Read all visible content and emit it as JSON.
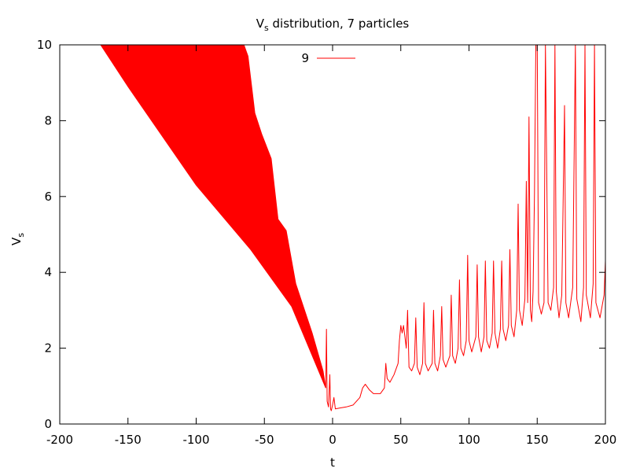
{
  "chart_data": {
    "type": "line",
    "title": "V",
    "title_sub": "s",
    "title_rest": " distribution, 7 particles",
    "xlabel": "t",
    "ylabel": "V",
    "ylabel_sub": "s",
    "xlim": [
      -200,
      200
    ],
    "ylim": [
      0,
      10
    ],
    "x_ticks": [
      "-200",
      "-150",
      "-100",
      "-50",
      "0",
      "50",
      "100",
      "150",
      "200"
    ],
    "x_tick_values": [
      -200,
      -150,
      -100,
      -50,
      0,
      50,
      100,
      150,
      200
    ],
    "y_ticks": [
      "0",
      "2",
      "4",
      "6",
      "8",
      "10"
    ],
    "y_tick_values": [
      0,
      2,
      4,
      6,
      8,
      10
    ],
    "grid": false,
    "legend_position": "top-center",
    "series": [
      {
        "name": "9",
        "color": "#ff0000",
        "band_lower": [
          [
            -170,
            10
          ],
          [
            -150,
            8.9
          ],
          [
            -100,
            6.3
          ],
          [
            -60,
            4.6
          ],
          [
            -30,
            3.1
          ],
          [
            -5,
            0.95
          ]
        ],
        "band_upper": [
          [
            -170,
            10
          ],
          [
            -65,
            10
          ],
          [
            -62,
            9.7
          ],
          [
            -57,
            8.2
          ],
          [
            -52,
            7.65
          ],
          [
            -45,
            7.0
          ],
          [
            -40,
            5.4
          ],
          [
            -34,
            5.1
          ],
          [
            -27,
            3.7
          ],
          [
            -15,
            2.4
          ],
          [
            -7,
            1.4
          ],
          [
            -5,
            0.95
          ]
        ],
        "points": [
          [
            -5,
            0.95
          ],
          [
            -4.5,
            2.5
          ],
          [
            -4,
            0.6
          ],
          [
            -3,
            0.45
          ],
          [
            -2,
            1.3
          ],
          [
            -1.5,
            0.4
          ],
          [
            -1,
            0.35
          ],
          [
            0,
            0.5
          ],
          [
            1,
            0.7
          ],
          [
            2,
            0.4
          ],
          [
            5,
            0.42
          ],
          [
            10,
            0.45
          ],
          [
            15,
            0.5
          ],
          [
            20,
            0.7
          ],
          [
            22,
            0.95
          ],
          [
            24,
            1.05
          ],
          [
            27,
            0.9
          ],
          [
            30,
            0.8
          ],
          [
            35,
            0.8
          ],
          [
            38,
            0.95
          ],
          [
            39,
            1.6
          ],
          [
            40,
            1.2
          ],
          [
            42,
            1.1
          ],
          [
            45,
            1.3
          ],
          [
            48,
            1.6
          ],
          [
            49,
            2.2
          ],
          [
            50,
            2.6
          ],
          [
            51,
            2.4
          ],
          [
            52,
            2.6
          ],
          [
            53,
            2.3
          ],
          [
            54,
            2.0
          ],
          [
            55,
            3.0
          ],
          [
            56,
            1.5
          ],
          [
            58,
            1.4
          ],
          [
            60,
            1.6
          ],
          [
            61,
            2.8
          ],
          [
            62,
            1.5
          ],
          [
            64,
            1.3
          ],
          [
            66,
            1.6
          ],
          [
            67,
            3.2
          ],
          [
            68,
            1.6
          ],
          [
            70,
            1.4
          ],
          [
            73,
            1.6
          ],
          [
            74,
            3.0
          ],
          [
            75,
            1.6
          ],
          [
            77,
            1.4
          ],
          [
            79,
            1.8
          ],
          [
            80,
            3.1
          ],
          [
            81,
            1.7
          ],
          [
            83,
            1.5
          ],
          [
            86,
            1.8
          ],
          [
            87,
            3.4
          ],
          [
            88,
            1.8
          ],
          [
            90,
            1.6
          ],
          [
            92,
            2.0
          ],
          [
            93,
            3.8
          ],
          [
            94,
            2.0
          ],
          [
            96,
            1.8
          ],
          [
            98,
            2.2
          ],
          [
            99,
            4.45
          ],
          [
            100,
            2.2
          ],
          [
            102,
            1.9
          ],
          [
            105,
            2.3
          ],
          [
            106,
            4.2
          ],
          [
            107,
            2.3
          ],
          [
            109,
            1.9
          ],
          [
            111,
            2.3
          ],
          [
            112,
            4.3
          ],
          [
            113,
            2.2
          ],
          [
            115,
            2.0
          ],
          [
            117,
            2.4
          ],
          [
            118,
            4.3
          ],
          [
            119,
            2.4
          ],
          [
            121,
            2.0
          ],
          [
            123,
            2.5
          ],
          [
            124,
            4.3
          ],
          [
            125,
            2.5
          ],
          [
            127,
            2.2
          ],
          [
            129,
            2.6
          ],
          [
            130,
            4.6
          ],
          [
            131,
            2.6
          ],
          [
            133,
            2.3
          ],
          [
            135,
            3.0
          ],
          [
            136,
            5.8
          ],
          [
            137,
            3.0
          ],
          [
            139,
            2.6
          ],
          [
            141,
            3.3
          ],
          [
            142,
            6.4
          ],
          [
            143,
            3.2
          ],
          [
            144,
            8.1
          ],
          [
            145,
            3.0
          ],
          [
            146,
            2.7
          ],
          [
            147,
            3.5
          ],
          [
            148,
            6.1
          ],
          [
            149,
            10
          ],
          [
            150,
            10
          ],
          [
            151,
            3.2
          ],
          [
            153,
            2.9
          ],
          [
            155,
            3.2
          ],
          [
            156,
            10
          ],
          [
            158,
            3.2
          ],
          [
            160,
            3.0
          ],
          [
            162,
            3.6
          ],
          [
            163,
            10
          ],
          [
            164,
            3.5
          ],
          [
            166,
            2.8
          ],
          [
            168,
            3.4
          ],
          [
            170,
            8.4
          ],
          [
            171,
            3.2
          ],
          [
            173,
            2.8
          ],
          [
            176,
            3.6
          ],
          [
            178,
            10
          ],
          [
            179,
            3.3
          ],
          [
            182,
            2.7
          ],
          [
            184,
            3.6
          ],
          [
            185,
            10
          ],
          [
            186,
            3.4
          ],
          [
            189,
            2.8
          ],
          [
            191,
            3.7
          ],
          [
            192,
            10
          ],
          [
            193,
            3.2
          ],
          [
            196,
            2.8
          ],
          [
            199,
            3.4
          ],
          [
            200,
            4.3
          ]
        ]
      }
    ]
  }
}
